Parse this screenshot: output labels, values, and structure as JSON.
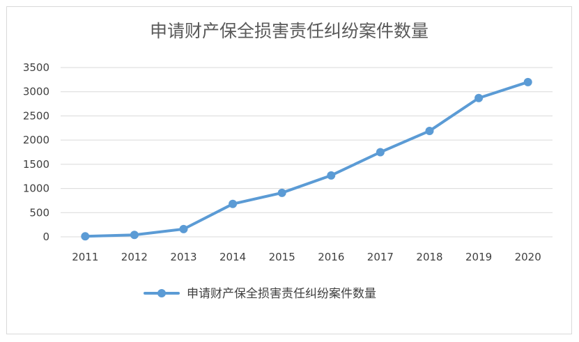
{
  "chart_data": {
    "type": "line",
    "title": "申请财产保全损害责任纠纷案件数量",
    "xlabel": "",
    "ylabel": "",
    "categories": [
      "2011",
      "2012",
      "2013",
      "2014",
      "2015",
      "2016",
      "2017",
      "2018",
      "2019",
      "2020"
    ],
    "series": [
      {
        "name": "申请财产保全损害责任纠纷案件数量",
        "values": [
          10,
          40,
          160,
          680,
          910,
          1270,
          1750,
          2190,
          2870,
          3200
        ],
        "color": "#5b9bd5"
      }
    ],
    "ylim": [
      0,
      3500
    ],
    "yticks": [
      0,
      500,
      1000,
      1500,
      2000,
      2500,
      3000,
      3500
    ],
    "grid": true,
    "legend_position": "bottom"
  }
}
